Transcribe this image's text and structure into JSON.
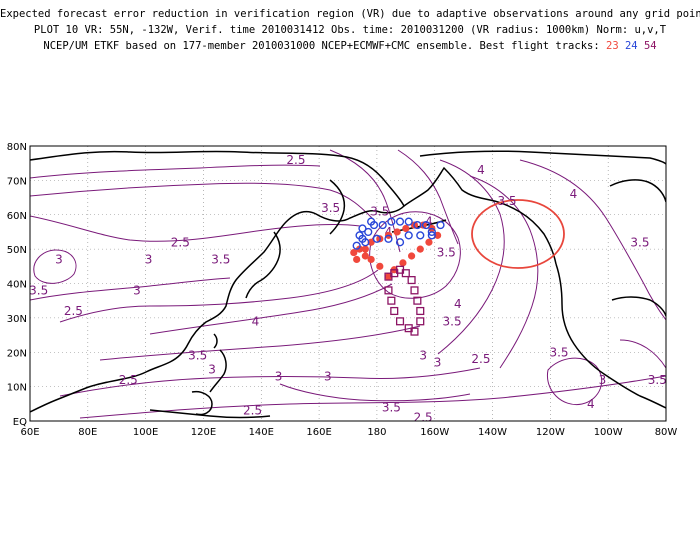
{
  "header": {
    "line1": "Expected forecast error reduction in verification region (VR) due to adaptive observations around any grid point.",
    "line2": "PLOT 10 VR: 55N, -132W, Verif. time 2010031412 Obs. time: 2010031200 (VR radius: 1000km) Norm: u,v,T",
    "line3_prefix": "NCEP/UM ETKF based on 177-member 2010031000 NCEP+ECMWF+CMC ensemble. Best flight tracks:",
    "track_a": "23",
    "track_b": "24",
    "track_c": "54"
  },
  "colors": {
    "contour": "#7a1a7a",
    "coast": "#000000",
    "track_a": "#f0483c",
    "track_b": "#2846d8",
    "track_c": "#8c1464",
    "vr_circle": "#e8463c",
    "grid": "#888888"
  },
  "map": {
    "lon_range": [
      60,
      280
    ],
    "lat_range": [
      0,
      80
    ],
    "lat_ticks": [
      "80N",
      "70N",
      "60N",
      "50N",
      "40N",
      "30N",
      "20N",
      "10N",
      "EQ"
    ],
    "lon_ticks": [
      "60E",
      "80E",
      "100E",
      "120E",
      "140E",
      "160E",
      "180",
      "160W",
      "140W",
      "120W",
      "100W",
      "80W"
    ],
    "verification_region": {
      "center": [
        55,
        -132
      ],
      "radius_km": 1000
    },
    "contour_labels": [
      {
        "text": "2.5",
        "lon": 152,
        "lat": 76
      },
      {
        "text": "3.5",
        "lon": 164,
        "lat": 62
      },
      {
        "text": "3.5",
        "lon": 181,
        "lat": 61
      },
      {
        "text": "4",
        "lon": 184,
        "lat": 55
      },
      {
        "text": "4",
        "lon": 198,
        "lat": 58
      },
      {
        "text": "4",
        "lon": 216,
        "lat": 73
      },
      {
        "text": "3.5",
        "lon": 225,
        "lat": 64
      },
      {
        "text": "4",
        "lon": 248,
        "lat": 66
      },
      {
        "text": "3.5",
        "lon": 271,
        "lat": 52
      },
      {
        "text": "2.5",
        "lon": 112,
        "lat": 52
      },
      {
        "text": "3",
        "lon": 101,
        "lat": 47
      },
      {
        "text": "3.5",
        "lon": 126,
        "lat": 47
      },
      {
        "text": "3",
        "lon": 70,
        "lat": 47
      },
      {
        "text": "3.5",
        "lon": 63,
        "lat": 38
      },
      {
        "text": "3",
        "lon": 97,
        "lat": 38
      },
      {
        "text": "2.5",
        "lon": 75,
        "lat": 32
      },
      {
        "text": "4",
        "lon": 138,
        "lat": 29
      },
      {
        "text": "3.5",
        "lon": 204,
        "lat": 49
      },
      {
        "text": "4",
        "lon": 208,
        "lat": 34
      },
      {
        "text": "3.5",
        "lon": 206,
        "lat": 29
      },
      {
        "text": "3",
        "lon": 196,
        "lat": 19
      },
      {
        "text": "3",
        "lon": 201,
        "lat": 17
      },
      {
        "text": "3.5",
        "lon": 118,
        "lat": 19
      },
      {
        "text": "3",
        "lon": 123,
        "lat": 15
      },
      {
        "text": "2.5",
        "lon": 94,
        "lat": 12
      },
      {
        "text": "3",
        "lon": 146,
        "lat": 13
      },
      {
        "text": "3",
        "lon": 163,
        "lat": 13
      },
      {
        "text": "2.5",
        "lon": 137,
        "lat": 3
      },
      {
        "text": "3.5",
        "lon": 185,
        "lat": 4
      },
      {
        "text": "2.5",
        "lon": 216,
        "lat": 18
      },
      {
        "text": "3.5",
        "lon": 243,
        "lat": 20
      },
      {
        "text": "3",
        "lon": 258,
        "lat": 12
      },
      {
        "text": "4",
        "lon": 254,
        "lat": 5
      },
      {
        "text": "3.5",
        "lon": 277,
        "lat": 12
      },
      {
        "text": "2.5",
        "lon": 196,
        "lat": 1
      }
    ],
    "track_23": [
      [
        173,
        47
      ],
      [
        176,
        50
      ],
      [
        178,
        52
      ],
      [
        181,
        53
      ],
      [
        184,
        54
      ],
      [
        187,
        55
      ],
      [
        190,
        56
      ],
      [
        193,
        57
      ],
      [
        196,
        57
      ],
      [
        199,
        56
      ],
      [
        201,
        54
      ],
      [
        198,
        52
      ],
      [
        195,
        50
      ],
      [
        192,
        48
      ],
      [
        189,
        46
      ],
      [
        186,
        44
      ],
      [
        184,
        42
      ],
      [
        181,
        45
      ],
      [
        178,
        47
      ],
      [
        176,
        48
      ],
      [
        174,
        50
      ],
      [
        172,
        49
      ]
    ],
    "track_24": [
      [
        173,
        51
      ],
      [
        175,
        53
      ],
      [
        177,
        55
      ],
      [
        179,
        57
      ],
      [
        182,
        57
      ],
      [
        185,
        58
      ],
      [
        188,
        58
      ],
      [
        191,
        58
      ],
      [
        194,
        57
      ],
      [
        197,
        57
      ],
      [
        199,
        55
      ],
      [
        202,
        57
      ],
      [
        199,
        54
      ],
      [
        195,
        54
      ],
      [
        191,
        54
      ],
      [
        188,
        52
      ],
      [
        184,
        53
      ],
      [
        180,
        53
      ],
      [
        176,
        52
      ],
      [
        174,
        54
      ],
      [
        175,
        56
      ],
      [
        178,
        58
      ]
    ],
    "track_54": [
      [
        184,
        42
      ],
      [
        184,
        38
      ],
      [
        185,
        35
      ],
      [
        186,
        32
      ],
      [
        188,
        29
      ],
      [
        191,
        27
      ],
      [
        193,
        26
      ],
      [
        195,
        29
      ],
      [
        195,
        32
      ],
      [
        194,
        35
      ],
      [
        193,
        38
      ],
      [
        192,
        41
      ],
      [
        190,
        43
      ],
      [
        188,
        44
      ],
      [
        186,
        43
      ]
    ]
  }
}
